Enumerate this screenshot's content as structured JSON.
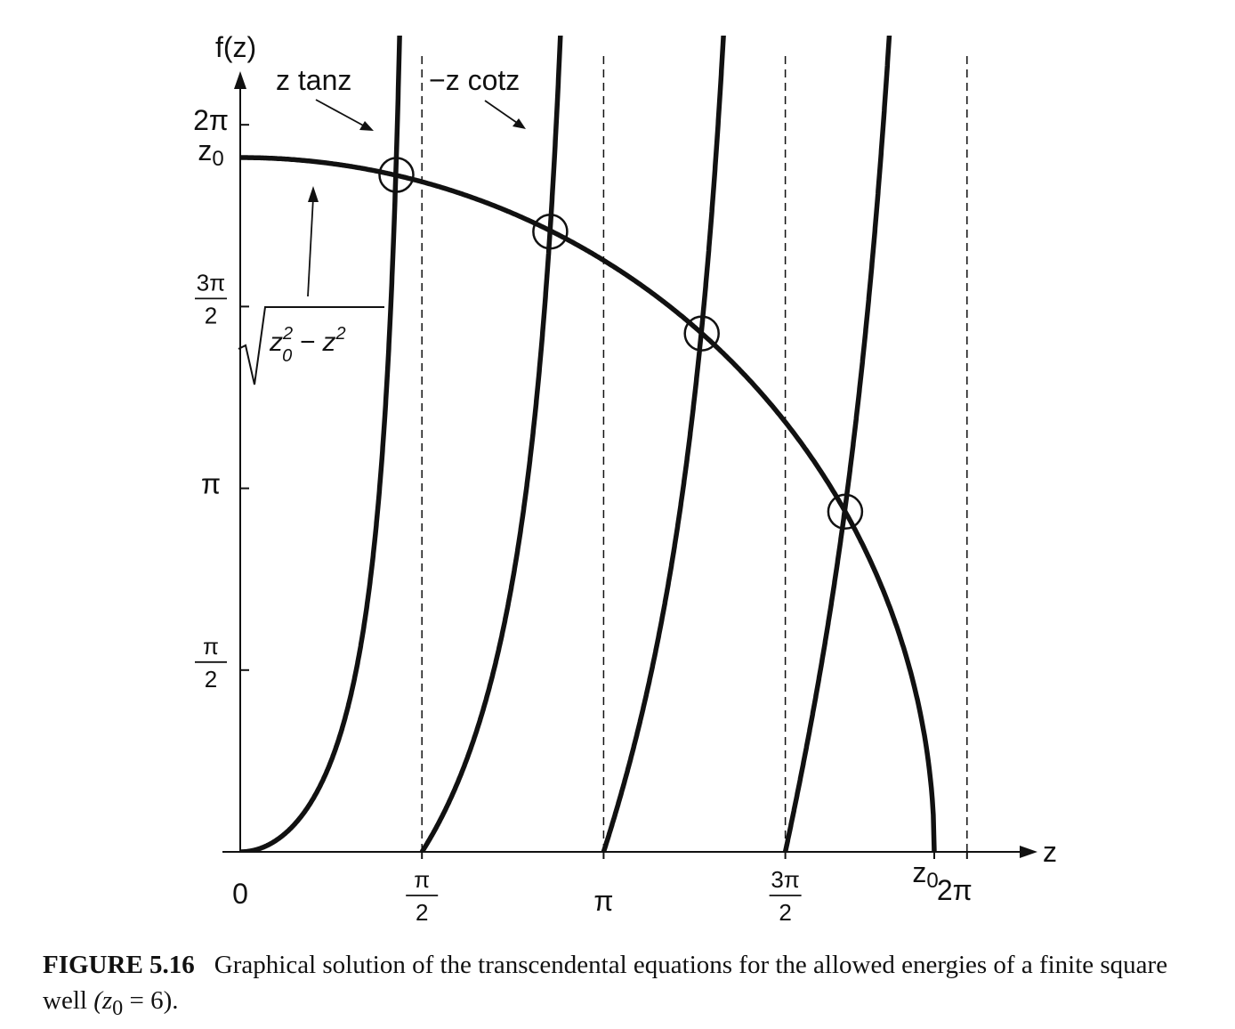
{
  "chart_data": {
    "type": "line",
    "title": "",
    "ylabel": "f(z)",
    "xlabel": "z",
    "xlim": [
      0,
      7.0
    ],
    "ylim": [
      0,
      6.6
    ],
    "z0": 6,
    "x_ticks": [
      {
        "value": 0,
        "label": "0"
      },
      {
        "value": 1.5708,
        "num": "π",
        "den": "2"
      },
      {
        "value": 3.1416,
        "label": "π"
      },
      {
        "value": 4.7124,
        "num": "3π",
        "den": "2"
      },
      {
        "value": 6.0,
        "label": "z0"
      },
      {
        "value": 6.2832,
        "label": "2π"
      }
    ],
    "y_ticks": [
      {
        "value": 1.5708,
        "num": "π",
        "den": "2"
      },
      {
        "value": 3.1416,
        "label": "π"
      },
      {
        "value": 4.7124,
        "num": "3π",
        "den": "2"
      },
      {
        "value": 6.0,
        "label": "z0"
      },
      {
        "value": 6.2832,
        "label": "2π"
      }
    ],
    "asymptotes": [
      1.5708,
      3.1416,
      4.7124,
      6.2832
    ],
    "curves": [
      {
        "label": "z tanz",
        "kind": "ztan",
        "branches": [
          [
            0,
            1.5708
          ],
          [
            3.1416,
            4.7124
          ]
        ]
      },
      {
        "label": "−z cotz",
        "kind": "mzcot",
        "branches": [
          [
            1.5708,
            3.1416
          ],
          [
            4.7124,
            6.2832
          ],
          [
            6.2832,
            7.0
          ]
        ]
      },
      {
        "label": "√(z0² − z²)",
        "kind": "circle",
        "branches": [
          [
            0,
            6.0
          ]
        ]
      }
    ],
    "intersections": [
      {
        "z": 1.35,
        "f": 5.85
      },
      {
        "z": 2.68,
        "f": 5.36
      },
      {
        "z": 3.99,
        "f": 4.48
      },
      {
        "z": 5.23,
        "f": 2.94
      }
    ],
    "labels": {
      "ztan": "z tanz",
      "mzcot": "−z cotz",
      "sqrt_z0": "z",
      "sqrt_sup": "2",
      "sqrt_sub": "0",
      "sqrt_minus": " − z",
      "sqrt_sup2": "2"
    }
  },
  "caption": {
    "number": "FIGURE 5.16",
    "text": "Graphical solution of the transcendental equations for the allowed energies of a finite square well",
    "math": "(z",
    "math_sub": "0",
    "math_rest": " = 6)."
  }
}
